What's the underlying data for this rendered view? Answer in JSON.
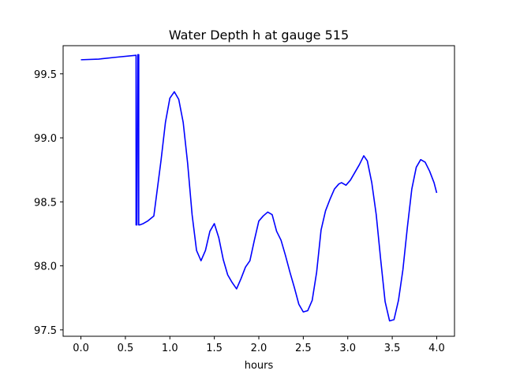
{
  "chart_data": {
    "type": "line",
    "title": "Water Depth h at gauge 515",
    "xlabel": "hours",
    "ylabel": "",
    "xlim": [
      -0.2,
      4.2
    ],
    "ylim": [
      97.45,
      99.72
    ],
    "xticks": [
      0.0,
      0.5,
      1.0,
      1.5,
      2.0,
      2.5,
      3.0,
      3.5,
      4.0
    ],
    "xtick_labels": [
      "0.0",
      "0.5",
      "1.0",
      "1.5",
      "2.0",
      "2.5",
      "3.0",
      "3.5",
      "4.0"
    ],
    "yticks": [
      97.5,
      98.0,
      98.5,
      99.0,
      99.5
    ],
    "ytick_labels": [
      "97.5",
      "98.0",
      "98.5",
      "99.0",
      "99.5"
    ],
    "grid": false,
    "series": [
      {
        "color": "#0000ff",
        "x": [
          0.0,
          0.2,
          0.4,
          0.62,
          0.62,
          0.63,
          0.64,
          0.65,
          0.65,
          0.66,
          0.7,
          0.75,
          0.82,
          0.9,
          0.95,
          1.0,
          1.05,
          1.1,
          1.15,
          1.2,
          1.25,
          1.3,
          1.35,
          1.4,
          1.45,
          1.5,
          1.55,
          1.6,
          1.65,
          1.7,
          1.75,
          1.8,
          1.85,
          1.9,
          1.95,
          2.0,
          2.05,
          2.1,
          2.15,
          2.2,
          2.25,
          2.3,
          2.35,
          2.4,
          2.45,
          2.5,
          2.55,
          2.6,
          2.65,
          2.7,
          2.75,
          2.8,
          2.85,
          2.9,
          2.93,
          2.98,
          3.03,
          3.08,
          3.13,
          3.18,
          3.22,
          3.27,
          3.32,
          3.37,
          3.42,
          3.47,
          3.52,
          3.57,
          3.62,
          3.67,
          3.72,
          3.77,
          3.82,
          3.87,
          3.92,
          3.97,
          4.0
        ],
        "y": [
          99.61,
          99.615,
          99.63,
          99.645,
          98.32,
          98.32,
          99.65,
          99.65,
          98.32,
          98.32,
          98.33,
          98.35,
          98.39,
          98.82,
          99.12,
          99.31,
          99.36,
          99.3,
          99.12,
          98.8,
          98.4,
          98.12,
          98.04,
          98.12,
          98.27,
          98.33,
          98.22,
          98.05,
          97.93,
          97.87,
          97.82,
          97.9,
          97.99,
          98.04,
          98.2,
          98.35,
          98.39,
          98.42,
          98.4,
          98.27,
          98.2,
          98.08,
          97.95,
          97.83,
          97.7,
          97.64,
          97.65,
          97.73,
          97.95,
          98.28,
          98.43,
          98.52,
          98.6,
          98.64,
          98.65,
          98.63,
          98.67,
          98.73,
          98.79,
          98.86,
          98.82,
          98.65,
          98.4,
          98.05,
          97.72,
          97.57,
          97.58,
          97.73,
          97.97,
          98.3,
          98.6,
          98.77,
          98.83,
          98.81,
          98.74,
          98.65,
          98.57
        ]
      }
    ]
  }
}
